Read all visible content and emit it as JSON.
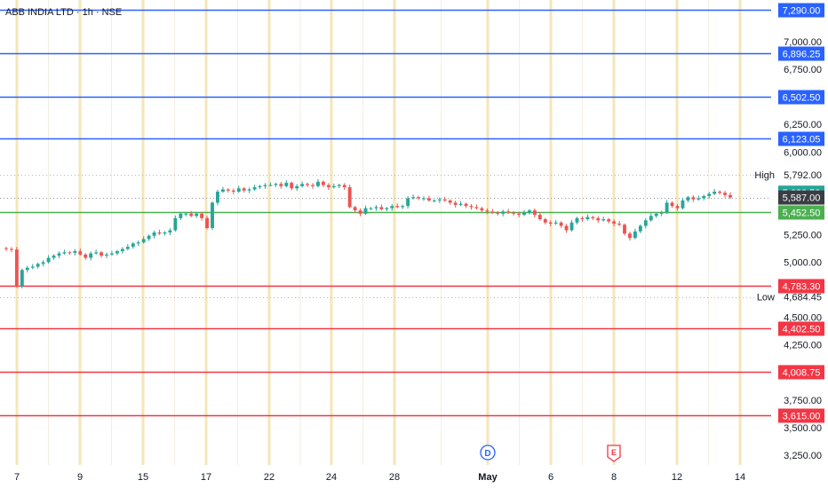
{
  "header": {
    "symbol_title": "ABB INDIA LTD · 1h · NSE"
  },
  "colors": {
    "up": "#26a69a",
    "down": "#ef5350",
    "resistance_line": "#2962ff",
    "support_line": "#f23645",
    "pivot_line": "#4caf50",
    "current_price_bg": "#3a3d44",
    "high_low_bg": "#ffffff"
  },
  "chart_data": {
    "type": "candlestick",
    "symbol": "ABB INDIA LTD",
    "interval": "1h",
    "exchange": "NSE",
    "ylim": [
      3150,
      7360
    ],
    "y_ticks": [
      {
        "value": 7000,
        "label": "7,000.00"
      },
      {
        "value": 6750,
        "label": "6,750.00"
      },
      {
        "value": 6250,
        "label": "6,250.00"
      },
      {
        "value": 6000,
        "label": "6,000.00"
      },
      {
        "value": 5250,
        "label": "5,250.00"
      },
      {
        "value": 5000,
        "label": "5,000.00"
      },
      {
        "value": 4500,
        "label": "4,500.00"
      },
      {
        "value": 4250,
        "label": "4,250.00"
      },
      {
        "value": 3750,
        "label": "3,750.00"
      },
      {
        "value": 3500,
        "label": "3,500.00"
      },
      {
        "value": 3250,
        "label": "3,250.00"
      }
    ],
    "x_ticks": [
      {
        "label": "7",
        "bold": false
      },
      {
        "label": "9",
        "bold": false
      },
      {
        "label": "15",
        "bold": false
      },
      {
        "label": "17",
        "bold": false
      },
      {
        "label": "22",
        "bold": false
      },
      {
        "label": "24",
        "bold": false
      },
      {
        "label": "28",
        "bold": false
      },
      {
        "label": "May",
        "bold": true
      },
      {
        "label": "6",
        "bold": false
      },
      {
        "label": "8",
        "bold": false
      },
      {
        "label": "12",
        "bold": false
      },
      {
        "label": "14",
        "bold": false
      }
    ],
    "horizontal_levels": [
      {
        "value": 7290.0,
        "label": "7,290.00",
        "kind": "resistance"
      },
      {
        "value": 6896.25,
        "label": "6,896.25",
        "kind": "resistance"
      },
      {
        "value": 6502.5,
        "label": "6,502.50",
        "kind": "resistance"
      },
      {
        "value": 6123.05,
        "label": "6,123.05",
        "kind": "resistance"
      },
      {
        "value": 5452.5,
        "label": "5,452.50",
        "kind": "pivot"
      },
      {
        "value": 4783.3,
        "label": "4,783.30",
        "kind": "support"
      },
      {
        "value": 4402.5,
        "label": "4,402.50",
        "kind": "support"
      },
      {
        "value": 4008.75,
        "label": "4,008.75",
        "kind": "support"
      },
      {
        "value": 3615.0,
        "label": "3,615.00",
        "kind": "support"
      }
    ],
    "markers": {
      "high": {
        "label": "High",
        "value": 5792.0,
        "value_label": "5,792.00"
      },
      "low": {
        "label": "Low",
        "value": 4684.45,
        "value_label": "4,684.45"
      },
      "last_close": {
        "value": 5630.5,
        "value_label": "5,630.50"
      },
      "current": {
        "value": 5587.0,
        "value_label": "5,587.00"
      }
    },
    "event_badges": [
      {
        "label": "D",
        "x_tick": "May"
      },
      {
        "label": "E",
        "x_tick": "8"
      }
    ],
    "close_series": [
      5120,
      5115,
      4780,
      4930,
      4950,
      4960,
      4985,
      5000,
      5040,
      5060,
      5080,
      5090,
      5085,
      5100,
      5070,
      5040,
      5080,
      5090,
      5060,
      5070,
      5080,
      5100,
      5120,
      5140,
      5170,
      5180,
      5210,
      5240,
      5270,
      5260,
      5270,
      5290,
      5400,
      5440,
      5440,
      5420,
      5440,
      5400,
      5310,
      5540,
      5640,
      5660,
      5650,
      5640,
      5670,
      5650,
      5660,
      5680,
      5690,
      5700,
      5700,
      5710,
      5690,
      5720,
      5670,
      5690,
      5710,
      5700,
      5690,
      5730,
      5700,
      5680,
      5690,
      5700,
      5680,
      5500,
      5470,
      5440,
      5490,
      5490,
      5500,
      5480,
      5490,
      5510,
      5500,
      5510,
      5580,
      5590,
      5580,
      5580,
      5560,
      5560,
      5570,
      5560,
      5540,
      5520,
      5530,
      5510,
      5500,
      5490,
      5470,
      5460,
      5450,
      5440,
      5460,
      5450,
      5440,
      5430,
      5450,
      5470,
      5430,
      5390,
      5360,
      5350,
      5360,
      5330,
      5290,
      5360,
      5400,
      5390,
      5410,
      5400,
      5380,
      5390,
      5370,
      5350,
      5340,
      5260,
      5220,
      5280,
      5330,
      5380,
      5420,
      5440,
      5450,
      5540,
      5510,
      5490,
      5560,
      5590,
      5570,
      5580,
      5600,
      5620,
      5640,
      5630,
      5610,
      5587
    ]
  }
}
